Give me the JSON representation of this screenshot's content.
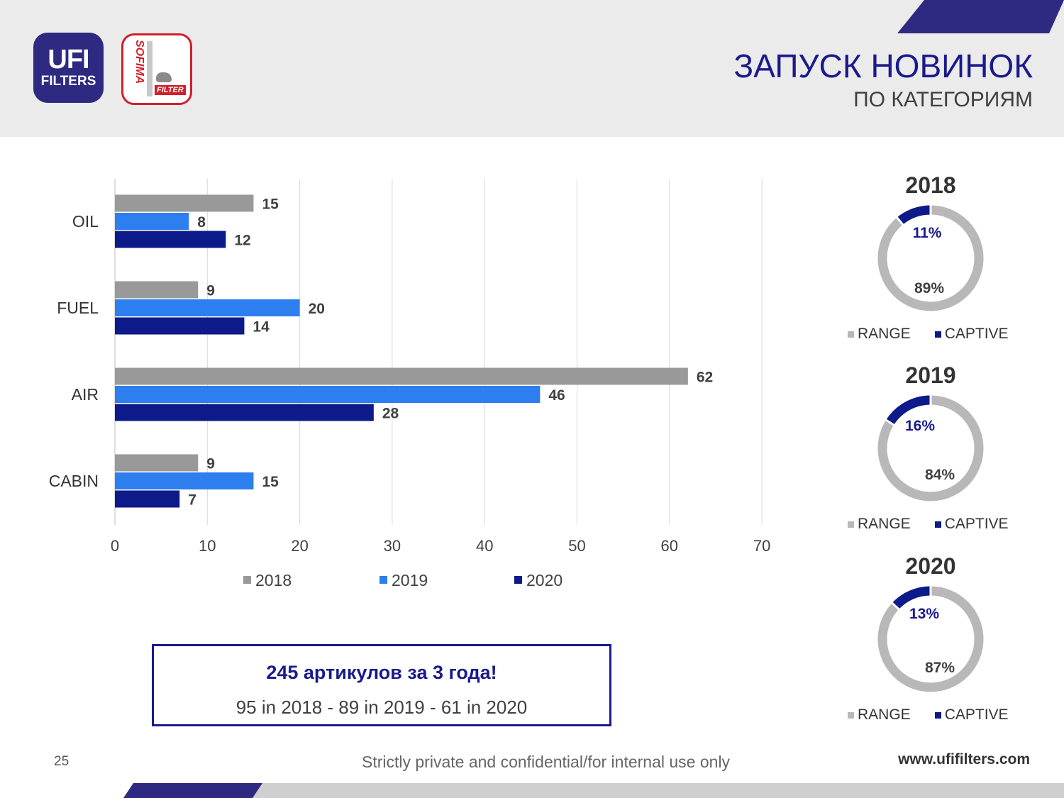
{
  "header": {
    "title": "ЗАПУСК НОВИНОК",
    "subtitle": "ПО КАТЕГОРИЯМ",
    "ufi_logo": {
      "line1": "UFI",
      "line2": "FILTERS"
    },
    "sofima_logo": {
      "word": "SOFIMA",
      "sub": "FILTER"
    }
  },
  "colors": {
    "series_2018": "#999999",
    "series_2019": "#2d7ff0",
    "series_2020": "#0c1a8a",
    "range": "#b8b8b8",
    "captive": "#0c1a8a",
    "accent": "#2e2a82"
  },
  "chart_data": [
    {
      "type": "bar",
      "orientation": "horizontal",
      "categories": [
        "OIL",
        "FUEL",
        "AIR",
        "CABIN"
      ],
      "series": [
        {
          "name": "2018",
          "values": [
            15,
            9,
            62,
            9
          ]
        },
        {
          "name": "2019",
          "values": [
            8,
            20,
            46,
            15
          ]
        },
        {
          "name": "2020",
          "values": [
            12,
            14,
            28,
            7
          ]
        }
      ],
      "xlim": [
        0,
        70
      ],
      "xticks": [
        "0",
        "10",
        "20",
        "30",
        "40",
        "50",
        "60",
        "70"
      ],
      "grid": true,
      "legend": "bottom",
      "data_labels": true
    },
    {
      "type": "pie",
      "variant": "donut",
      "title": "2018",
      "slices": [
        {
          "name": "RANGE",
          "value": 89,
          "label": "89%"
        },
        {
          "name": "CAPTIVE",
          "value": 11,
          "label": "11%"
        }
      ],
      "legend": "bottom"
    },
    {
      "type": "pie",
      "variant": "donut",
      "title": "2019",
      "slices": [
        {
          "name": "RANGE",
          "value": 84,
          "label": "84%"
        },
        {
          "name": "CAPTIVE",
          "value": 16,
          "label": "16%"
        }
      ],
      "legend": "bottom"
    },
    {
      "type": "pie",
      "variant": "donut",
      "title": "2020",
      "slices": [
        {
          "name": "RANGE",
          "value": 87,
          "label": "87%"
        },
        {
          "name": "CAPTIVE",
          "value": 13,
          "label": "13%"
        }
      ],
      "legend": "bottom"
    }
  ],
  "summary": {
    "headline": "245 артикулов за 3 года!",
    "detail": "95 in 2018 - 89 in 2019 - 61 in 2020"
  },
  "footer": {
    "page_number": "25",
    "note": "Strictly private and confidential/for internal use only",
    "url": "www.ufifilters.com"
  }
}
